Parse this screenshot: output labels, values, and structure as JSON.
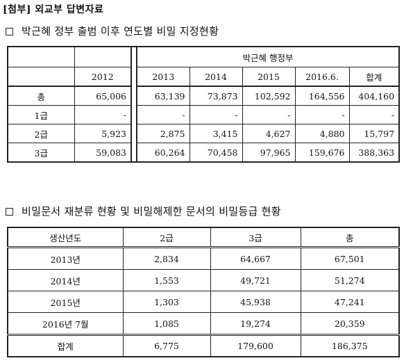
{
  "header": {
    "tag": "[첨부]",
    "title": "외교부 답변자료"
  },
  "section1": {
    "title": "박근혜 정부 출범 이후 연도별 비밀 지정현황",
    "group_header": "박근혜 행정부",
    "columns": [
      "2012",
      "2013",
      "2014",
      "2015",
      "2016.6.",
      "합계"
    ],
    "rows": [
      {
        "label": "총",
        "values": [
          "65,006",
          "63,139",
          "73,873",
          "102,592",
          "164,556",
          "404,160"
        ]
      },
      {
        "label": "1급",
        "values": [
          "-",
          "-",
          "-",
          "-",
          "-",
          "-"
        ]
      },
      {
        "label": "2급",
        "values": [
          "5,923",
          "2,875",
          "3,415",
          "4,627",
          "4,880",
          "15,797"
        ]
      },
      {
        "label": "3급",
        "values": [
          "59,083",
          "60,264",
          "70,458",
          "97,965",
          "159,676",
          "388,363"
        ]
      }
    ]
  },
  "section2": {
    "title": "비밀문서 재분류 현황 및 비밀해제한 문서의 비밀등급 현황",
    "columns": [
      "생산년도",
      "2급",
      "3급",
      "총"
    ],
    "rows": [
      [
        "2013년",
        "2,834",
        "64,667",
        "67,501"
      ],
      [
        "2014년",
        "1,553",
        "49,721",
        "51,274"
      ],
      [
        "2015년",
        "1,303",
        "45,938",
        "47,241"
      ],
      [
        "2016년 7월",
        "1,085",
        "19,274",
        "20,359"
      ]
    ],
    "total": [
      "합계",
      "6,775",
      "179,600",
      "186,375"
    ]
  }
}
